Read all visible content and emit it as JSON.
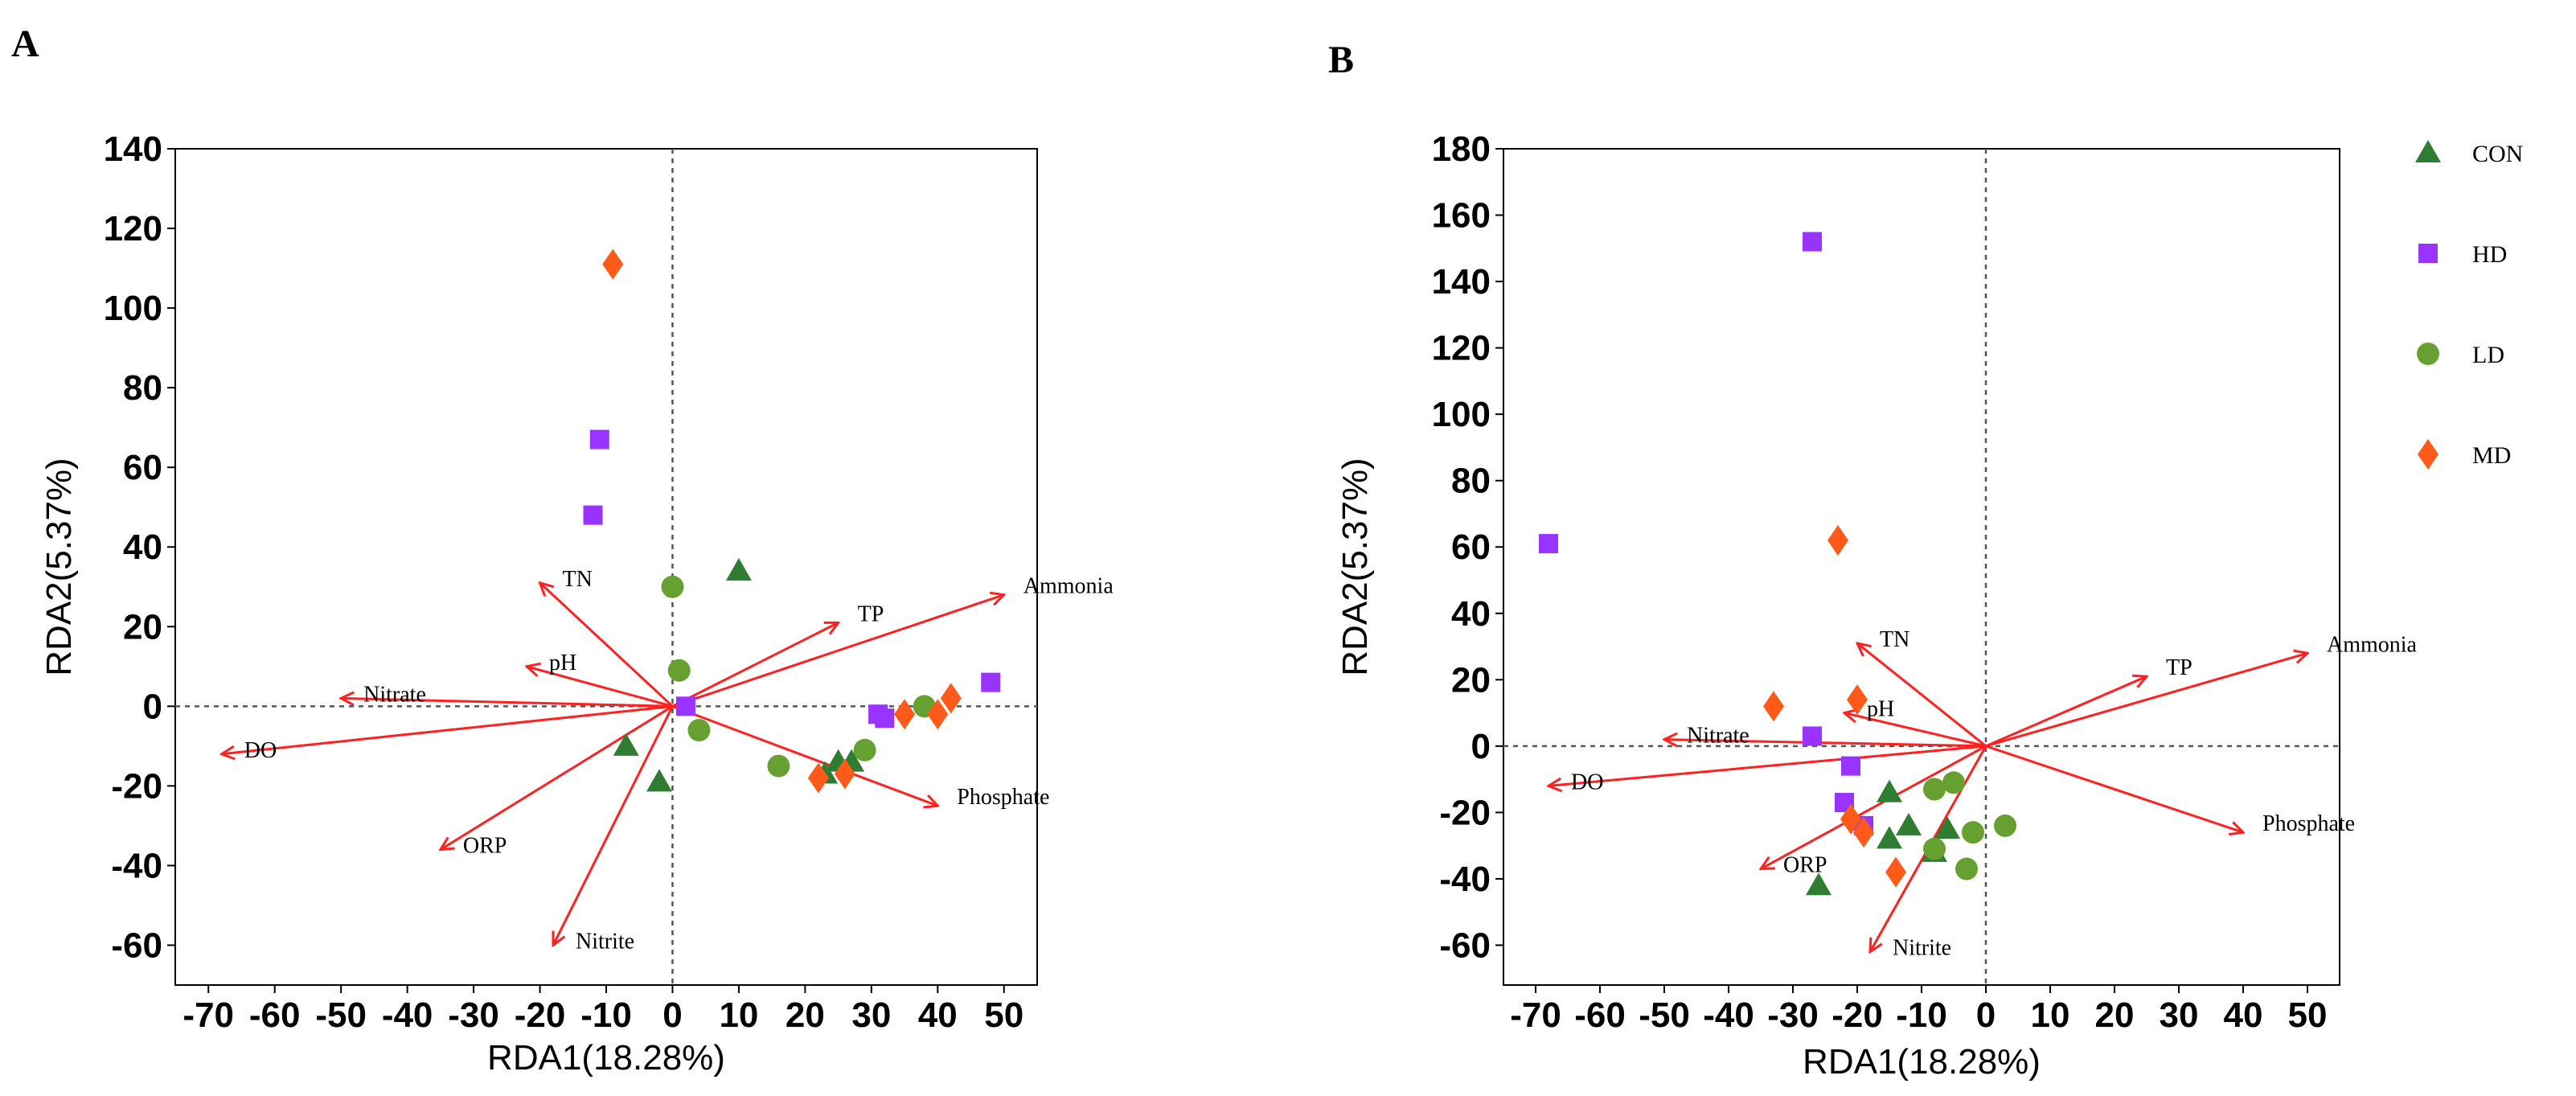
{
  "colors": {
    "CON": "#2e7d32",
    "HD": "#9933ff",
    "LD": "#66a030",
    "MD": "#ff5a1a",
    "arrow": "#ff2020"
  },
  "legend": [
    {
      "name": "CON",
      "shape": "triangle"
    },
    {
      "name": "HD",
      "shape": "square"
    },
    {
      "name": "LD",
      "shape": "circle"
    },
    {
      "name": "MD",
      "shape": "diamond"
    }
  ],
  "chart_data": [
    {
      "type": "scatter",
      "panel": "A",
      "xlabel": "RDA1(18.28%)",
      "ylabel": "RDA2(5.37%)",
      "xlim": [
        -75,
        55
      ],
      "ylim": [
        -70,
        140
      ],
      "xticks": [
        -70,
        -60,
        -50,
        -40,
        -30,
        -20,
        -10,
        0,
        10,
        20,
        30,
        40,
        50
      ],
      "yticks": [
        -60,
        -40,
        -20,
        0,
        20,
        40,
        60,
        80,
        100,
        120,
        140
      ],
      "vectors": [
        {
          "name": "Ammonia",
          "x": 50,
          "y": 28
        },
        {
          "name": "TP",
          "x": 25,
          "y": 21
        },
        {
          "name": "TN",
          "x": -20,
          "y": 31
        },
        {
          "name": "pH",
          "x": -22,
          "y": 10
        },
        {
          "name": "Nitrate",
          "x": -50,
          "y": 2
        },
        {
          "name": "DO",
          "x": -68,
          "y": -12
        },
        {
          "name": "ORP",
          "x": -35,
          "y": -36
        },
        {
          "name": "Nitrite",
          "x": -18,
          "y": -60
        },
        {
          "name": "Phosphate",
          "x": 40,
          "y": -25
        }
      ],
      "series": [
        {
          "name": "CON",
          "points": [
            [
              10,
              34
            ],
            [
              -7,
              -10
            ],
            [
              -2,
              -19
            ],
            [
              25,
              -14
            ],
            [
              27,
              -14
            ],
            [
              23,
              -17
            ]
          ]
        },
        {
          "name": "HD",
          "points": [
            [
              -11,
              67
            ],
            [
              -12,
              48
            ],
            [
              48,
              6
            ],
            [
              31,
              -2
            ],
            [
              32,
              -3
            ],
            [
              2,
              0
            ]
          ]
        },
        {
          "name": "LD",
          "points": [
            [
              0,
              30
            ],
            [
              1,
              9
            ],
            [
              4,
              -6
            ],
            [
              16,
              -15
            ],
            [
              29,
              -11
            ],
            [
              38,
              0
            ]
          ]
        },
        {
          "name": "MD",
          "points": [
            [
              -9,
              111
            ],
            [
              42,
              2
            ],
            [
              40,
              -2
            ],
            [
              35,
              -2
            ],
            [
              22,
              -18
            ],
            [
              26,
              -17
            ]
          ]
        }
      ]
    },
    {
      "type": "scatter",
      "panel": "B",
      "xlabel": "RDA1(18.28%)",
      "ylabel": "RDA2(5.37%)",
      "xlim": [
        -75,
        55
      ],
      "ylim": [
        -72,
        180
      ],
      "xticks": [
        -70,
        -60,
        -50,
        -40,
        -30,
        -20,
        -10,
        0,
        10,
        20,
        30,
        40,
        50
      ],
      "yticks": [
        -60,
        -40,
        -20,
        0,
        20,
        40,
        60,
        80,
        100,
        120,
        140,
        160,
        180
      ],
      "vectors": [
        {
          "name": "Ammonia",
          "x": 50,
          "y": 28
        },
        {
          "name": "TP",
          "x": 25,
          "y": 21
        },
        {
          "name": "TN",
          "x": -20,
          "y": 31
        },
        {
          "name": "pH",
          "x": -22,
          "y": 10
        },
        {
          "name": "Nitrate",
          "x": -50,
          "y": 2
        },
        {
          "name": "DO",
          "x": -68,
          "y": -12
        },
        {
          "name": "ORP",
          "x": -35,
          "y": -37
        },
        {
          "name": "Nitrite",
          "x": -18,
          "y": -62
        },
        {
          "name": "Phosphate",
          "x": 40,
          "y": -26
        }
      ],
      "series": [
        {
          "name": "CON",
          "points": [
            [
              -15,
              -14
            ],
            [
              -15,
              -28
            ],
            [
              -12,
              -24
            ],
            [
              -8,
              -32
            ],
            [
              -6,
              -25
            ],
            [
              -26,
              -42
            ]
          ]
        },
        {
          "name": "HD",
          "points": [
            [
              -27,
              152
            ],
            [
              -68,
              61
            ],
            [
              -27,
              3
            ],
            [
              -21,
              -6
            ],
            [
              -22,
              -17
            ],
            [
              -19,
              -24
            ]
          ]
        },
        {
          "name": "LD",
          "points": [
            [
              -5,
              -11
            ],
            [
              -8,
              -13
            ],
            [
              -2,
              -26
            ],
            [
              3,
              -24
            ],
            [
              -3,
              -37
            ],
            [
              -8,
              -31
            ]
          ]
        },
        {
          "name": "MD",
          "points": [
            [
              -23,
              62
            ],
            [
              -20,
              14
            ],
            [
              -33,
              12
            ],
            [
              -21,
              -22
            ],
            [
              -19,
              -26
            ],
            [
              -14,
              -38
            ]
          ]
        }
      ]
    }
  ]
}
